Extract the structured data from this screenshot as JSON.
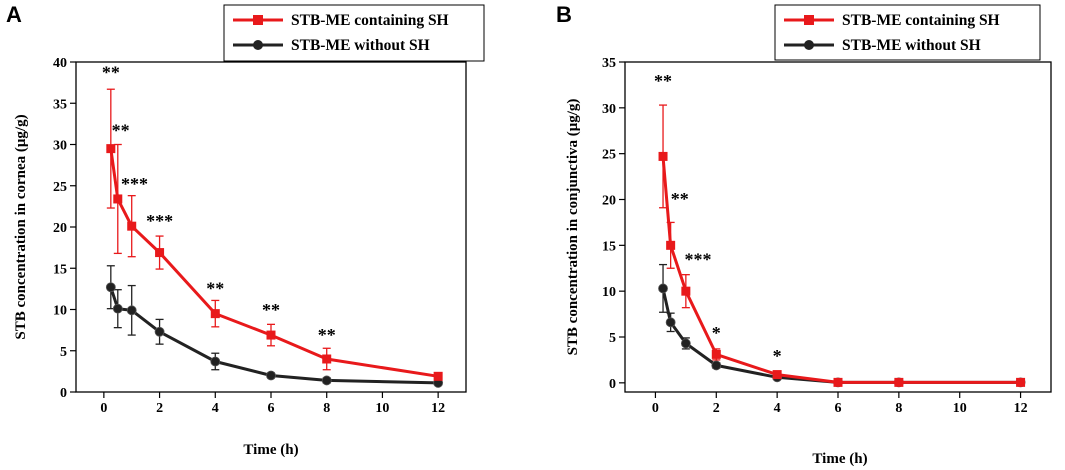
{
  "chart_data": [
    {
      "type": "line",
      "panel_label": "A",
      "xlabel": "Time (h)",
      "ylabel": "STB concentration in cornea (μg/g)",
      "xlim": [
        -1,
        13
      ],
      "ylim": [
        0,
        40
      ],
      "xticks": [
        0,
        2,
        4,
        6,
        8,
        10,
        12
      ],
      "yticks": [
        0,
        5,
        10,
        15,
        20,
        25,
        30,
        35,
        40
      ],
      "legend": "top-center",
      "series": [
        {
          "name": "STB-ME containing SH",
          "color": "#e8191b",
          "marker": "square",
          "x": [
            0.25,
            0.5,
            1,
            2,
            4,
            6,
            8,
            12
          ],
          "y": [
            29.5,
            23.4,
            20.1,
            16.9,
            9.5,
            6.9,
            4.0,
            1.9
          ],
          "err": [
            7.2,
            6.6,
            3.7,
            2.0,
            1.6,
            1.3,
            1.3,
            0.4
          ]
        },
        {
          "name": "STB-ME without SH",
          "color": "#222222",
          "marker": "circle",
          "x": [
            0.25,
            0.5,
            1,
            2,
            4,
            6,
            8,
            12
          ],
          "y": [
            12.7,
            10.1,
            9.9,
            7.3,
            3.7,
            2.0,
            1.4,
            1.1
          ],
          "err": [
            2.6,
            2.3,
            3.0,
            1.5,
            1.0,
            0.3,
            0.3,
            0.2
          ]
        }
      ],
      "annotations": [
        {
          "x": 0.25,
          "y": 38.0,
          "text": "**"
        },
        {
          "x": 0.6,
          "y": 31.0,
          "text": "**"
        },
        {
          "x": 1.1,
          "y": 24.5,
          "text": "***"
        },
        {
          "x": 2.0,
          "y": 20.0,
          "text": "***"
        },
        {
          "x": 4.0,
          "y": 11.8,
          "text": "**"
        },
        {
          "x": 6.0,
          "y": 9.2,
          "text": "**"
        },
        {
          "x": 8.0,
          "y": 6.2,
          "text": "**"
        }
      ]
    },
    {
      "type": "line",
      "panel_label": "B",
      "xlabel": "Time (h)",
      "ylabel": "STB concentration in conjunctiva (μg/g)",
      "xlim": [
        -1,
        13
      ],
      "ylim": [
        -1,
        35
      ],
      "xticks": [
        0,
        2,
        4,
        6,
        8,
        10,
        12
      ],
      "yticks": [
        0,
        5,
        10,
        15,
        20,
        25,
        30,
        35
      ],
      "legend": "top-center",
      "series": [
        {
          "name": "STB-ME containing SH",
          "color": "#e8191b",
          "marker": "square",
          "x": [
            0.25,
            0.5,
            1,
            2,
            4,
            6,
            8,
            12
          ],
          "y": [
            24.7,
            15.0,
            10.0,
            3.1,
            0.9,
            0.05,
            0.05,
            0.05
          ],
          "err": [
            5.6,
            2.5,
            1.8,
            0.6,
            0.2,
            0.05,
            0.05,
            0.05
          ]
        },
        {
          "name": "STB-ME without SH",
          "color": "#222222",
          "marker": "circle",
          "x": [
            0.25,
            0.5,
            1,
            2,
            4,
            6,
            8,
            12
          ],
          "y": [
            10.3,
            6.6,
            4.3,
            1.9,
            0.6,
            0.05,
            0.05,
            0.05
          ],
          "err": [
            2.6,
            1.0,
            0.6,
            0.3,
            0.1,
            0.05,
            0.05,
            0.05
          ]
        }
      ],
      "annotations": [
        {
          "x": 0.25,
          "y": 32.3,
          "text": "**"
        },
        {
          "x": 0.8,
          "y": 19.4,
          "text": "**"
        },
        {
          "x": 1.4,
          "y": 12.8,
          "text": "***"
        },
        {
          "x": 2.0,
          "y": 4.8,
          "text": "*"
        },
        {
          "x": 4.0,
          "y": 2.3,
          "text": "*"
        }
      ]
    }
  ]
}
